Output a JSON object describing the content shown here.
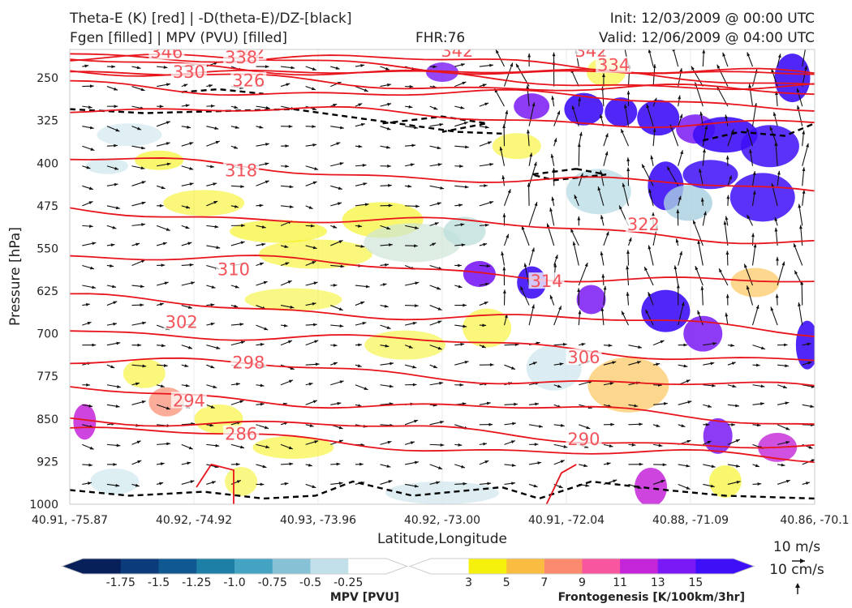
{
  "header": {
    "title_line1": "Theta-E (K) [red] | -D(theta-E)/DZ-[black]",
    "title_line2": "Fgen [filled] | MPV (PVU) [filled]",
    "fhr": "FHR:76",
    "init": "Init: 12/03/2009 @ 00:00 UTC",
    "valid": "Valid: 12/06/2009 @ 04:00 UTC"
  },
  "colors": {
    "theta_e_contour": "#e8141c",
    "theta_e_label": "#f2535a",
    "stability_contour": "#000000",
    "vector": "#111111",
    "frame": "#c9c9c9",
    "mpv_fill": "#d7eaf0",
    "fgen_fill": "#f7f78a"
  },
  "chart_data": {
    "type": "cross-section",
    "xlabel": "Latitude,Longitude",
    "ylabel": "Pressure [hPa]",
    "yticks": [
      250,
      325,
      400,
      475,
      550,
      625,
      700,
      775,
      850,
      925,
      1000
    ],
    "ylim": [
      1000,
      200
    ],
    "xticks": [
      "40.91, -75.87",
      "40.92, -74.92",
      "40.93, -73.96",
      "40.92, -73.00",
      "40.91, -72.04",
      "40.88, -71.09",
      "40.86, -70.1"
    ],
    "theta_e_levels": [
      346,
      342,
      338,
      334,
      330,
      326,
      322,
      318,
      314,
      310,
      306,
      302,
      298,
      294,
      290,
      286
    ],
    "theta_e_labels": [
      {
        "text": "346",
        "x": 0.13,
        "p": 205
      },
      {
        "text": "342",
        "x": 0.24,
        "p": 206
      },
      {
        "text": "338",
        "x": 0.23,
        "p": 214
      },
      {
        "text": "330",
        "x": 0.16,
        "p": 240
      },
      {
        "text": "326",
        "x": 0.24,
        "p": 255
      },
      {
        "text": "342",
        "x": 0.52,
        "p": 203
      },
      {
        "text": "342",
        "x": 0.7,
        "p": 203
      },
      {
        "text": "334",
        "x": 0.73,
        "p": 228
      },
      {
        "text": "318",
        "x": 0.23,
        "p": 413
      },
      {
        "text": "322",
        "x": 0.77,
        "p": 508
      },
      {
        "text": "310",
        "x": 0.22,
        "p": 587
      },
      {
        "text": "314",
        "x": 0.64,
        "p": 608
      },
      {
        "text": "302",
        "x": 0.15,
        "p": 680
      },
      {
        "text": "306",
        "x": 0.69,
        "p": 742
      },
      {
        "text": "298",
        "x": 0.24,
        "p": 751
      },
      {
        "text": "294",
        "x": 0.16,
        "p": 818
      },
      {
        "text": "290",
        "x": 0.69,
        "p": 886
      },
      {
        "text": "286",
        "x": 0.23,
        "p": 877
      }
    ],
    "mpv_colorbar": {
      "label": "MPV [PVU]",
      "ticks": [
        "-1.75",
        "-1.5",
        "-1.25",
        "-1.0",
        "-0.75",
        "-0.5",
        "-0.25"
      ],
      "colors": [
        "#08205a",
        "#0b3b7a",
        "#0f5891",
        "#1d7fa6",
        "#44a2c2",
        "#86c1d6",
        "#c2e0e9",
        "#ffffff"
      ]
    },
    "fgen_colorbar": {
      "label": "Frontogenesis [K/100km/3hr]",
      "ticks": [
        "3",
        "5",
        "7",
        "9",
        "11",
        "13",
        "15"
      ],
      "colors": [
        "#ffffff",
        "#f5f10c",
        "#fbbd41",
        "#fb8a6e",
        "#f8569e",
        "#c425d8",
        "#7a19f5",
        "#3e0ff7"
      ]
    },
    "vector_key": {
      "label1": "10 m/s",
      "label2": "10 cm/s"
    }
  }
}
